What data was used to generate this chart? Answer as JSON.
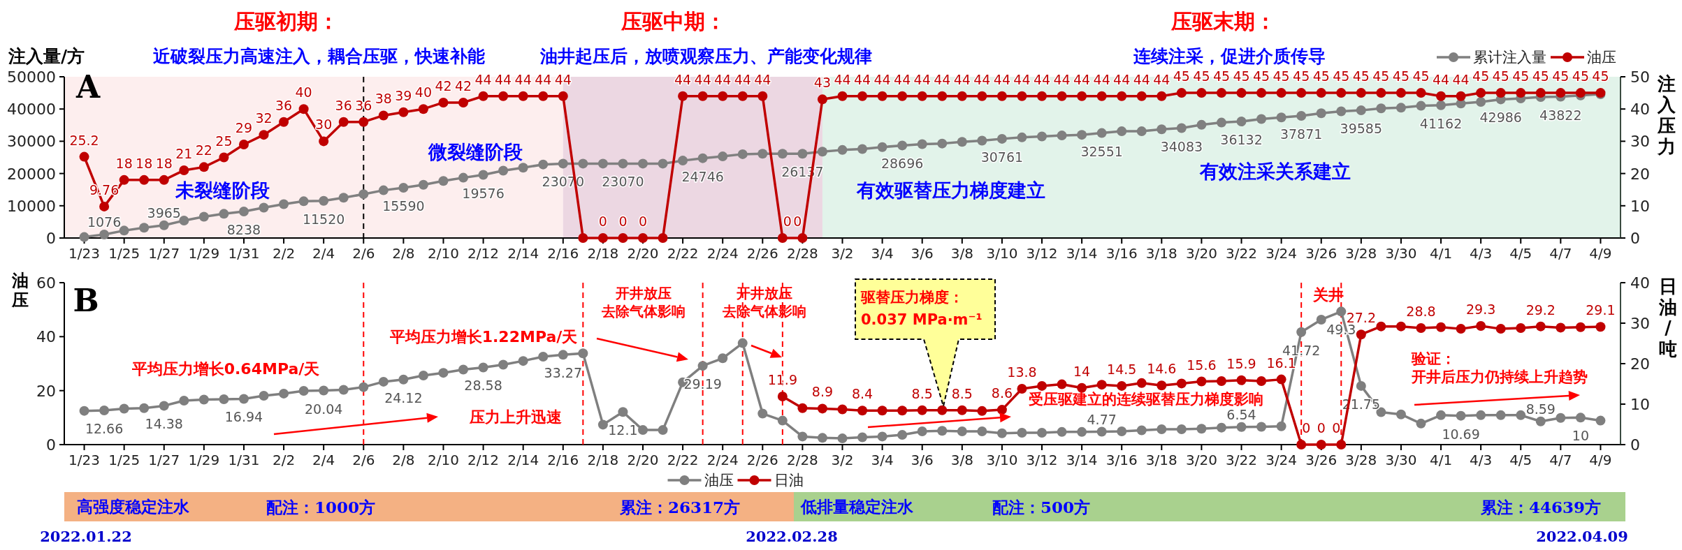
{
  "chart_data": [
    {
      "type": "line",
      "x": [
        "--01-23",
        "--01-24",
        "--01-25",
        "--01-26",
        "--01-27",
        "--01-28",
        "--01-29",
        "--01-30",
        "--01-31",
        "--02-01",
        "--02-02",
        "--02-03",
        "--02-04",
        "--02-05",
        "--02-06",
        "--02-07",
        "--02-08",
        "--02-09",
        "--02-10",
        "--02-11",
        "--02-12",
        "--02-13",
        "--02-14",
        "--02-15",
        "--02-16",
        "--02-17",
        "--02-18",
        "--02-19",
        "--02-20",
        "--02-21",
        "--02-22",
        "--02-23",
        "--02-24",
        "--02-25",
        "--02-26",
        "--02-27",
        "--02-28",
        "--03-01",
        "--03-02",
        "--03-03",
        "--03-04",
        "--03-05",
        "--03-06",
        "--03-07",
        "--03-08",
        "--03-09",
        "--03-10",
        "--03-11",
        "--03-12",
        "--03-13",
        "--03-14",
        "--03-15",
        "--03-16",
        "--03-17",
        "--03-18",
        "--03-19",
        "--03-20",
        "--03-21",
        "--03-22",
        "--03-23",
        "--03-24",
        "--03-25",
        "--03-26",
        "--03-27",
        "--03-28",
        "--03-29",
        "--03-30",
        "--03-31",
        "--04-01",
        "--04-02",
        "--04-03",
        "--04-04",
        "--04-05",
        "--04-06",
        "--04-07",
        "--04-08",
        "--04-09"
      ],
      "xlim": [
        "--01-22",
        "--04-10"
      ],
      "xticks": [
        {
          "value": "--01-23",
          "label": "1/23"
        },
        {
          "value": "--01-25",
          "label": "1/25"
        },
        {
          "value": "--01-27",
          "label": "1/27"
        },
        {
          "value": "--01-29",
          "label": "1/29"
        },
        {
          "value": "--01-31",
          "label": "1/31"
        },
        {
          "value": "--02-02",
          "label": "2/2"
        },
        {
          "value": "--02-04",
          "label": "2/4"
        },
        {
          "value": "--02-06",
          "label": "2/6"
        },
        {
          "value": "--02-08",
          "label": "2/8"
        },
        {
          "value": "--02-10",
          "label": "2/10"
        },
        {
          "value": "--02-12",
          "label": "2/12"
        },
        {
          "value": "--02-14",
          "label": "2/14"
        },
        {
          "value": "--02-16",
          "label": "2/16"
        },
        {
          "value": "--02-18",
          "label": "2/18"
        },
        {
          "value": "--02-20",
          "label": "2/20"
        },
        {
          "value": "--02-22",
          "label": "2/22"
        },
        {
          "value": "--02-24",
          "label": "2/24"
        },
        {
          "value": "--02-26",
          "label": "2/26"
        },
        {
          "value": "--02-28",
          "label": "2/28"
        },
        {
          "value": "--03-02",
          "label": "3/2"
        },
        {
          "value": "--03-04",
          "label": "3/4"
        },
        {
          "value": "--03-06",
          "label": "3/6"
        },
        {
          "value": "--03-08",
          "label": "3/8"
        },
        {
          "value": "--03-10",
          "label": "3/10"
        },
        {
          "value": "--03-12",
          "label": "3/12"
        },
        {
          "value": "--03-14",
          "label": "3/14"
        },
        {
          "value": "--03-16",
          "label": "3/16"
        },
        {
          "value": "--03-18",
          "label": "3/18"
        },
        {
          "value": "--03-20",
          "label": "3/20"
        },
        {
          "value": "--03-22",
          "label": "3/22"
        },
        {
          "value": "--03-24",
          "label": "3/24"
        },
        {
          "value": "--03-26",
          "label": "3/26"
        },
        {
          "value": "--03-28",
          "label": "3/28"
        },
        {
          "value": "--03-30",
          "label": "3/30"
        },
        {
          "value": "--04-01",
          "label": "4/1"
        },
        {
          "value": "--04-03",
          "label": "4/3"
        },
        {
          "value": "--04-05",
          "label": "4/5"
        },
        {
          "value": "--04-07",
          "label": "4/7"
        },
        {
          "value": "--04-09",
          "label": "4/9"
        }
      ],
      "ylabel": "注入量/方",
      "y2label": "注入压力",
      "ylim": [
        0,
        50000
      ],
      "yticks": [
        0,
        10000,
        20000,
        30000,
        40000,
        50000
      ],
      "y2lim": [
        0,
        50
      ],
      "y2ticks": [
        0,
        10,
        20,
        30,
        40,
        50
      ],
      "legend": "top right",
      "marker": "circle",
      "line_style": "solid",
      "series": [
        {
          "name": "累计注入量",
          "color": "#808080",
          "axis": "y",
          "values": [
            300,
            1076,
            2300,
            3200,
            3965,
            5400,
            6600,
            7500,
            8238,
            9400,
            10500,
            11400,
            11520,
            12500,
            13600,
            14800,
            15590,
            16500,
            17700,
            18700,
            19576,
            20900,
            21800,
            22800,
            23070,
            23070,
            23070,
            23070,
            23070,
            23070,
            24000,
            24746,
            25300,
            26000,
            26137,
            26137,
            26137,
            26800,
            27300,
            27600,
            28200,
            28696,
            29100,
            29300,
            29800,
            30200,
            30761,
            31200,
            31500,
            31800,
            32000,
            32551,
            33100,
            33100,
            33700,
            34083,
            35100,
            35800,
            36132,
            36900,
            37400,
            37871,
            38700,
            39300,
            39585,
            40200,
            40400,
            41000,
            41162,
            41700,
            42200,
            42986,
            43300,
            43700,
            43822,
            44200,
            44600
          ],
          "value_labels": [
            null,
            "1076",
            null,
            null,
            "3965",
            null,
            null,
            null,
            "8238",
            null,
            null,
            null,
            "11520",
            null,
            null,
            null,
            "15590",
            null,
            null,
            null,
            "19576",
            null,
            null,
            null,
            "23070",
            null,
            null,
            "23070",
            null,
            null,
            null,
            "24746",
            null,
            null,
            null,
            null,
            "26137",
            null,
            null,
            null,
            null,
            "28696",
            null,
            null,
            null,
            null,
            "30761",
            null,
            null,
            null,
            null,
            "32551",
            null,
            null,
            null,
            "34083",
            null,
            null,
            "36132",
            null,
            null,
            "37871",
            null,
            null,
            "39585",
            null,
            null,
            null,
            "41162",
            null,
            null,
            "42986",
            null,
            null,
            "43822",
            null,
            null
          ]
        },
        {
          "name": "油压",
          "color": "#c00000",
          "axis": "y2",
          "values": [
            25.2,
            9.76,
            18,
            18,
            18,
            21,
            22,
            25,
            29,
            32,
            36,
            40,
            30,
            36,
            36,
            38,
            39,
            40,
            42,
            42,
            44,
            44,
            44,
            44,
            44,
            0,
            0,
            0,
            0,
            0,
            44,
            44,
            44,
            44,
            44,
            0,
            0,
            43,
            44,
            44,
            44,
            44,
            44,
            44,
            44,
            44,
            44,
            44,
            44,
            44,
            44,
            44,
            44,
            44,
            44,
            45,
            45,
            45,
            45,
            45,
            45,
            45,
            45,
            45,
            45,
            45,
            45,
            45,
            44,
            44,
            45,
            45,
            45,
            45,
            45,
            45,
            45
          ],
          "value_labels": [
            "25.2",
            "9.76",
            "18",
            "18",
            "18",
            "21",
            "22",
            "25",
            "29",
            "32",
            "36",
            "40",
            "30",
            "36",
            "36",
            "38",
            "39",
            "40",
            "42",
            "42",
            "44",
            "44",
            "44",
            "44",
            "44",
            null,
            "0",
            "0",
            "0",
            null,
            "44",
            "44",
            "44",
            "44",
            "44",
            "0",
            "0",
            "43",
            "44",
            "44",
            "44",
            "44",
            "44",
            "44",
            "44",
            "44",
            "44",
            "44",
            "44",
            "44",
            "44",
            "44",
            "44",
            "44",
            "44",
            "45",
            "45",
            "45",
            "45",
            "45",
            "45",
            "45",
            "45",
            "45",
            "45",
            "45",
            "45",
            "45",
            "44",
            "44",
            "45",
            "45",
            "45",
            "45",
            "45",
            "45",
            "45"
          ]
        }
      ],
      "bands": [
        {
          "axis": "x",
          "from": "--01-22",
          "to": "--02-16",
          "color": "#fdeeee"
        },
        {
          "axis": "x",
          "from": "--02-16",
          "to": "--03-01",
          "color": "#ecd7e2"
        },
        {
          "axis": "x",
          "from": "--03-01",
          "to": "--04-10",
          "color": "#e2f3ea"
        }
      ],
      "ref_lines": [
        {
          "axis": "x",
          "value": "--02-06",
          "color": "#000000",
          "line_style": "dashed"
        }
      ],
      "annotations": [
        "压驱初期：",
        "近破裂压力高速注入，耦合压驱，快速补能",
        "压驱中期：",
        "油井起压后，放喷观察压力、产能变化规律",
        "压驱末期：",
        "连续注采，促进介质传导",
        "A",
        "未裂缝阶段",
        "微裂缝阶段",
        "有效驱替压力梯度建立",
        "有效注采关系建立"
      ]
    },
    {
      "type": "line",
      "x": [
        "--01-23",
        "--01-24",
        "--01-25",
        "--01-26",
        "--01-27",
        "--01-28",
        "--01-29",
        "--01-30",
        "--01-31",
        "--02-01",
        "--02-02",
        "--02-03",
        "--02-04",
        "--02-05",
        "--02-06",
        "--02-07",
        "--02-08",
        "--02-09",
        "--02-10",
        "--02-11",
        "--02-12",
        "--02-13",
        "--02-14",
        "--02-15",
        "--02-16",
        "--02-17",
        "--02-18",
        "--02-19",
        "--02-20",
        "--02-21",
        "--02-22",
        "--02-23",
        "--02-24",
        "--02-25",
        "--02-26",
        "--02-27",
        "--02-28",
        "--03-01",
        "--03-02",
        "--03-03",
        "--03-04",
        "--03-05",
        "--03-06",
        "--03-07",
        "--03-08",
        "--03-09",
        "--03-10",
        "--03-11",
        "--03-12",
        "--03-13",
        "--03-14",
        "--03-15",
        "--03-16",
        "--03-17",
        "--03-18",
        "--03-19",
        "--03-20",
        "--03-21",
        "--03-22",
        "--03-23",
        "--03-24",
        "--03-25",
        "--03-26",
        "--03-27",
        "--03-28",
        "--03-29",
        "--03-30",
        "--03-31",
        "--04-01",
        "--04-02",
        "--04-03",
        "--04-04",
        "--04-05",
        "--04-06",
        "--04-07",
        "--04-08",
        "--04-09"
      ],
      "xlim": [
        "--01-22",
        "--04-10"
      ],
      "xticks": [
        {
          "value": "--01-23",
          "label": "1/23"
        },
        {
          "value": "--01-25",
          "label": "1/25"
        },
        {
          "value": "--01-27",
          "label": "1/27"
        },
        {
          "value": "--01-29",
          "label": "1/29"
        },
        {
          "value": "--01-31",
          "label": "1/31"
        },
        {
          "value": "--02-02",
          "label": "2/2"
        },
        {
          "value": "--02-04",
          "label": "2/4"
        },
        {
          "value": "--02-06",
          "label": "2/6"
        },
        {
          "value": "--02-08",
          "label": "2/8"
        },
        {
          "value": "--02-10",
          "label": "2/10"
        },
        {
          "value": "--02-12",
          "label": "2/12"
        },
        {
          "value": "--02-14",
          "label": "2/14"
        },
        {
          "value": "--02-16",
          "label": "2/16"
        },
        {
          "value": "--02-18",
          "label": "2/18"
        },
        {
          "value": "--02-20",
          "label": "2/20"
        },
        {
          "value": "--02-22",
          "label": "2/22"
        },
        {
          "value": "--02-24",
          "label": "2/24"
        },
        {
          "value": "--02-26",
          "label": "2/26"
        },
        {
          "value": "--02-28",
          "label": "2/28"
        },
        {
          "value": "--03-02",
          "label": "3/2"
        },
        {
          "value": "--03-04",
          "label": "3/4"
        },
        {
          "value": "--03-06",
          "label": "3/6"
        },
        {
          "value": "--03-08",
          "label": "3/8"
        },
        {
          "value": "--03-10",
          "label": "3/10"
        },
        {
          "value": "--03-12",
          "label": "3/12"
        },
        {
          "value": "--03-14",
          "label": "3/14"
        },
        {
          "value": "--03-16",
          "label": "3/16"
        },
        {
          "value": "--03-18",
          "label": "3/18"
        },
        {
          "value": "--03-20",
          "label": "3/20"
        },
        {
          "value": "--03-22",
          "label": "3/22"
        },
        {
          "value": "--03-24",
          "label": "3/24"
        },
        {
          "value": "--03-26",
          "label": "3/26"
        },
        {
          "value": "--03-28",
          "label": "3/28"
        },
        {
          "value": "--03-30",
          "label": "3/30"
        },
        {
          "value": "--04-01",
          "label": "4/1"
        },
        {
          "value": "--04-03",
          "label": "4/3"
        },
        {
          "value": "--04-05",
          "label": "4/5"
        },
        {
          "value": "--04-07",
          "label": "4/7"
        },
        {
          "value": "--04-09",
          "label": "4/9"
        }
      ],
      "ylabel": "油压",
      "y2label": "日油/吨",
      "ylim": [
        0,
        60
      ],
      "yticks": [
        0,
        20,
        40,
        60
      ],
      "y2lim": [
        0,
        40
      ],
      "y2ticks": [
        0,
        10,
        20,
        30,
        40
      ],
      "legend": "bottom",
      "marker": "circle",
      "line_style": "solid",
      "series": [
        {
          "name": "油压",
          "color": "#7f7f7f",
          "axis": "y",
          "values": [
            12.5,
            12.66,
            13.3,
            13.5,
            14.38,
            16.3,
            16.7,
            16.8,
            16.94,
            18.1,
            18.9,
            19.9,
            20.04,
            20.3,
            21.3,
            23.3,
            24.12,
            25.6,
            26.6,
            27.8,
            28.58,
            29.6,
            31.0,
            32.6,
            33.27,
            33.8,
            7.4,
            12.1,
            5.4,
            5.4,
            23.1,
            29.19,
            32.0,
            37.6,
            11.5,
            8.9,
            3.0,
            2.5,
            2.3,
            2.7,
            3.0,
            3.6,
            4.9,
            5.1,
            4.9,
            4.9,
            4.2,
            4.4,
            4.4,
            4.7,
            4.7,
            4.77,
            4.9,
            5.3,
            5.7,
            5.7,
            5.9,
            6.3,
            6.54,
            6.6,
            6.8,
            41.72,
            46.3,
            49.3,
            21.75,
            12.0,
            11.2,
            7.8,
            10.9,
            10.69,
            10.9,
            10.9,
            10.9,
            8.59,
            9.9,
            10,
            8.9
          ],
          "value_labels": [
            null,
            "12.66",
            null,
            null,
            "14.38",
            null,
            null,
            null,
            "16.94",
            null,
            null,
            null,
            "20.04",
            null,
            null,
            null,
            "24.12",
            null,
            null,
            null,
            "28.58",
            null,
            null,
            null,
            "33.27",
            null,
            null,
            "12.1",
            null,
            null,
            null,
            "29.19",
            null,
            null,
            null,
            null,
            null,
            null,
            null,
            null,
            null,
            null,
            null,
            null,
            null,
            null,
            null,
            null,
            null,
            null,
            null,
            "4.77",
            null,
            null,
            null,
            null,
            null,
            null,
            "6.54",
            null,
            null,
            "41.72",
            null,
            "49.3",
            "21.75",
            null,
            null,
            null,
            null,
            "10.69",
            null,
            null,
            null,
            "8.59",
            null,
            "10",
            null
          ]
        },
        {
          "name": "日油",
          "color": "#c00000",
          "axis": "y2",
          "values": [
            null,
            null,
            null,
            null,
            null,
            null,
            null,
            null,
            null,
            null,
            null,
            null,
            null,
            null,
            null,
            null,
            null,
            null,
            null,
            null,
            null,
            null,
            null,
            null,
            null,
            null,
            null,
            null,
            null,
            null,
            null,
            null,
            null,
            null,
            null,
            11.9,
            9.0,
            8.9,
            8.7,
            8.4,
            8.4,
            8.4,
            8.5,
            8.5,
            8.5,
            8.3,
            8.6,
            13.8,
            14.5,
            14.9,
            14,
            14.8,
            14.5,
            15.2,
            14.6,
            15.1,
            15.6,
            15.7,
            15.9,
            15.7,
            16.1,
            0,
            0,
            0,
            27.2,
            29.2,
            29.2,
            28.8,
            29.0,
            28.6,
            29.3,
            28.6,
            28.8,
            29.2,
            28.9,
            29.0,
            29.1
          ],
          "value_labels": [
            null,
            null,
            null,
            null,
            null,
            null,
            null,
            null,
            null,
            null,
            null,
            null,
            null,
            null,
            null,
            null,
            null,
            null,
            null,
            null,
            null,
            null,
            null,
            null,
            null,
            null,
            null,
            null,
            null,
            null,
            null,
            null,
            null,
            null,
            null,
            "11.9",
            null,
            "8.9",
            null,
            "8.4",
            null,
            null,
            "8.5",
            null,
            "8.5",
            null,
            "8.6",
            "13.8",
            null,
            null,
            "14",
            null,
            "14.5",
            null,
            "14.6",
            null,
            "15.6",
            null,
            "15.9",
            null,
            "16.1",
            "0",
            "0",
            "0",
            "27.2",
            null,
            null,
            "28.8",
            null,
            null,
            "29.3",
            null,
            null,
            "29.2",
            null,
            null,
            "29.1"
          ]
        }
      ],
      "ref_lines": [
        {
          "axis": "x",
          "value": "--02-06",
          "color": "#ff0000",
          "line_style": "dashed"
        },
        {
          "axis": "x",
          "value": "--02-17",
          "color": "#ff0000",
          "line_style": "dashed"
        },
        {
          "axis": "x",
          "value": "--02-23",
          "color": "#ff0000",
          "line_style": "dashed"
        },
        {
          "axis": "x",
          "value": "--02-25",
          "color": "#ff0000",
          "line_style": "dashed"
        },
        {
          "axis": "x",
          "value": "--02-27",
          "color": "#ff0000",
          "line_style": "dashed"
        },
        {
          "axis": "x",
          "value": "--03-25",
          "color": "#ff0000",
          "line_style": "dashed"
        },
        {
          "axis": "x",
          "value": "--03-27",
          "color": "#ff0000",
          "line_style": "dashed"
        }
      ],
      "annotations": [
        "B",
        "平均压力增长0.64MPa/天",
        "平均压力增长1.22MPa/天",
        "压力上升迅速",
        "开井放压",
        "去除气体影响",
        "开井放压",
        "去除气体影响",
        "驱替压力梯度：",
        "0.037 MPa·m⁻¹",
        "关井",
        "受压驱建立的连续驱替压力梯度影响",
        "验证：",
        "开井后压力仍持续上升趋势",
        "高强度稳定注水",
        "配注：1000方",
        "累注：26317方",
        "低排量稳定注水",
        "配注：500方",
        "累注：44639方",
        "2022.01.22",
        "2022.02.28",
        "2022.04.09"
      ]
    }
  ]
}
